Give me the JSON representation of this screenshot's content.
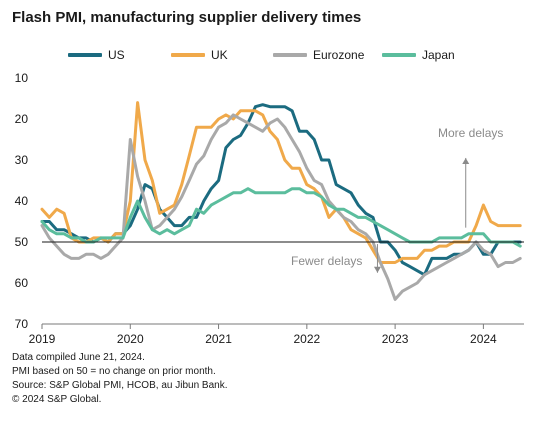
{
  "chart_data": {
    "type": "line",
    "title": "Flash PMI, manufacturing supplier delivery times",
    "xlabel": "",
    "ylabel": "",
    "x_ticks": [
      "2019",
      "2020",
      "2021",
      "2022",
      "2023",
      "2024"
    ],
    "y_ticks": [
      10,
      20,
      30,
      40,
      50,
      60,
      70
    ],
    "ylim": [
      70,
      10
    ],
    "y_inverted": true,
    "xlim": [
      2019.0,
      2024.46
    ],
    "reference_line": 50,
    "grid": false,
    "legend_position": "top",
    "annotations": {
      "up": "More delays",
      "down": "Fewer delays"
    },
    "series": [
      {
        "name": "US",
        "color": "#1b6b80",
        "x": [
          2019.0,
          2019.083,
          2019.167,
          2019.25,
          2019.333,
          2019.417,
          2019.5,
          2019.583,
          2019.667,
          2019.75,
          2019.833,
          2019.917,
          2020.0,
          2020.083,
          2020.167,
          2020.25,
          2020.333,
          2020.417,
          2020.5,
          2020.583,
          2020.667,
          2020.75,
          2020.833,
          2020.917,
          2021.0,
          2021.083,
          2021.167,
          2021.25,
          2021.333,
          2021.417,
          2021.5,
          2021.583,
          2021.667,
          2021.75,
          2021.833,
          2021.917,
          2022.0,
          2022.083,
          2022.167,
          2022.25,
          2022.333,
          2022.417,
          2022.5,
          2022.583,
          2022.667,
          2022.75,
          2022.833,
          2022.917,
          2023.0,
          2023.083,
          2023.167,
          2023.25,
          2023.333,
          2023.417,
          2023.5,
          2023.583,
          2023.667,
          2023.75,
          2023.833,
          2023.917,
          2024.0,
          2024.083,
          2024.167,
          2024.25,
          2024.333,
          2024.417
        ],
        "values": [
          45,
          45,
          47,
          47,
          48,
          49,
          49,
          50,
          49,
          50,
          48,
          48,
          46,
          42,
          36,
          37,
          42,
          44,
          46,
          46,
          44,
          44,
          40,
          37,
          35,
          27,
          25,
          24,
          21,
          17,
          16.5,
          17,
          17,
          17,
          18,
          23,
          23,
          25,
          30,
          30,
          36,
          37,
          38,
          41,
          43,
          44,
          50,
          50,
          52,
          55,
          56,
          57,
          58,
          54,
          54,
          54,
          53,
          53,
          52,
          50,
          53,
          53,
          50,
          50,
          50,
          50
        ]
      },
      {
        "name": "UK",
        "color": "#f0a94a",
        "x": [
          2019.0,
          2019.083,
          2019.167,
          2019.25,
          2019.333,
          2019.417,
          2019.5,
          2019.583,
          2019.667,
          2019.75,
          2019.833,
          2019.917,
          2020.0,
          2020.083,
          2020.167,
          2020.25,
          2020.333,
          2020.417,
          2020.5,
          2020.583,
          2020.667,
          2020.75,
          2020.833,
          2020.917,
          2021.0,
          2021.083,
          2021.167,
          2021.25,
          2021.333,
          2021.417,
          2021.5,
          2021.583,
          2021.667,
          2021.75,
          2021.833,
          2021.917,
          2022.0,
          2022.083,
          2022.167,
          2022.25,
          2022.333,
          2022.417,
          2022.5,
          2022.583,
          2022.667,
          2022.75,
          2022.833,
          2022.917,
          2023.0,
          2023.083,
          2023.167,
          2023.25,
          2023.333,
          2023.417,
          2023.5,
          2023.583,
          2023.667,
          2023.75,
          2023.833,
          2023.917,
          2024.0,
          2024.083,
          2024.167,
          2024.25,
          2024.333,
          2024.417
        ],
        "values": [
          42,
          44,
          42,
          43,
          49,
          50,
          50,
          49,
          49,
          50,
          48,
          48,
          40,
          16,
          30,
          35,
          43,
          42,
          41,
          36,
          29,
          22,
          22,
          22,
          20,
          19,
          20,
          18,
          18,
          18,
          19,
          23,
          25,
          30,
          32,
          32,
          36,
          37,
          39,
          44,
          42,
          44,
          47,
          48,
          49,
          52,
          55,
          55,
          55,
          54,
          54,
          54,
          52,
          52,
          51,
          51,
          50,
          50,
          50,
          46,
          41,
          45,
          46,
          46,
          46,
          46
        ]
      },
      {
        "name": "Eurozone",
        "color": "#a9a9a9",
        "x": [
          2019.0,
          2019.083,
          2019.167,
          2019.25,
          2019.333,
          2019.417,
          2019.5,
          2019.583,
          2019.667,
          2019.75,
          2019.833,
          2019.917,
          2020.0,
          2020.083,
          2020.167,
          2020.25,
          2020.333,
          2020.417,
          2020.5,
          2020.583,
          2020.667,
          2020.75,
          2020.833,
          2020.917,
          2021.0,
          2021.083,
          2021.167,
          2021.25,
          2021.333,
          2021.417,
          2021.5,
          2021.583,
          2021.667,
          2021.75,
          2021.833,
          2021.917,
          2022.0,
          2022.083,
          2022.167,
          2022.25,
          2022.333,
          2022.417,
          2022.5,
          2022.583,
          2022.667,
          2022.75,
          2022.833,
          2022.917,
          2023.0,
          2023.083,
          2023.167,
          2023.25,
          2023.333,
          2023.417,
          2023.5,
          2023.583,
          2023.667,
          2023.75,
          2023.833,
          2023.917,
          2024.0,
          2024.083,
          2024.167,
          2024.25,
          2024.333,
          2024.417
        ],
        "values": [
          46,
          49,
          51,
          53,
          54,
          54,
          53,
          53,
          54,
          53,
          51,
          49,
          25,
          34,
          40,
          47,
          46,
          44,
          42,
          39,
          35,
          31,
          29,
          25,
          22,
          21,
          19,
          20,
          21,
          22,
          23,
          21,
          20,
          22,
          25,
          28,
          32,
          35,
          36,
          40,
          42,
          44,
          45,
          47,
          48,
          50,
          55,
          59,
          64,
          62,
          61,
          60,
          58,
          57,
          56,
          55,
          54,
          53,
          52,
          50,
          52,
          53,
          56,
          55,
          55,
          54
        ]
      },
      {
        "name": "Japan",
        "color": "#5bbd9d",
        "x": [
          2019.0,
          2019.083,
          2019.167,
          2019.25,
          2019.333,
          2019.417,
          2019.5,
          2019.583,
          2019.667,
          2019.75,
          2019.833,
          2019.917,
          2020.0,
          2020.083,
          2020.167,
          2020.25,
          2020.333,
          2020.417,
          2020.5,
          2020.583,
          2020.667,
          2020.75,
          2020.833,
          2020.917,
          2021.0,
          2021.083,
          2021.167,
          2021.25,
          2021.333,
          2021.417,
          2021.5,
          2021.583,
          2021.667,
          2021.75,
          2021.833,
          2021.917,
          2022.0,
          2022.083,
          2022.167,
          2022.25,
          2022.333,
          2022.417,
          2022.5,
          2022.583,
          2022.667,
          2022.75,
          2022.833,
          2022.917,
          2023.0,
          2023.083,
          2023.167,
          2023.25,
          2023.333,
          2023.417,
          2023.5,
          2023.583,
          2023.667,
          2023.75,
          2023.833,
          2023.917,
          2024.0,
          2024.083,
          2024.167,
          2024.25,
          2024.333,
          2024.417
        ],
        "values": [
          45,
          47,
          48,
          48,
          49,
          49,
          50,
          50,
          49,
          49,
          49,
          49,
          44,
          40,
          44,
          47,
          48,
          47,
          48,
          47,
          46,
          42,
          43,
          41,
          40,
          39,
          38,
          38,
          37,
          38,
          38,
          38,
          38,
          38,
          37,
          37,
          38,
          38,
          39,
          41,
          42,
          42,
          43,
          44,
          44,
          45,
          46,
          47,
          48,
          49,
          50,
          50,
          50,
          50,
          49,
          49,
          49,
          49,
          48,
          48,
          48,
          50,
          50,
          50,
          50,
          51
        ]
      }
    ]
  },
  "footnotes": [
    "Data compiled June 21, 2024.",
    "PMI based on 50 = no change on prior month.",
    "Source: S&P Global PMI, HCOB, au Jibun Bank.",
    "© 2024 S&P Global."
  ]
}
